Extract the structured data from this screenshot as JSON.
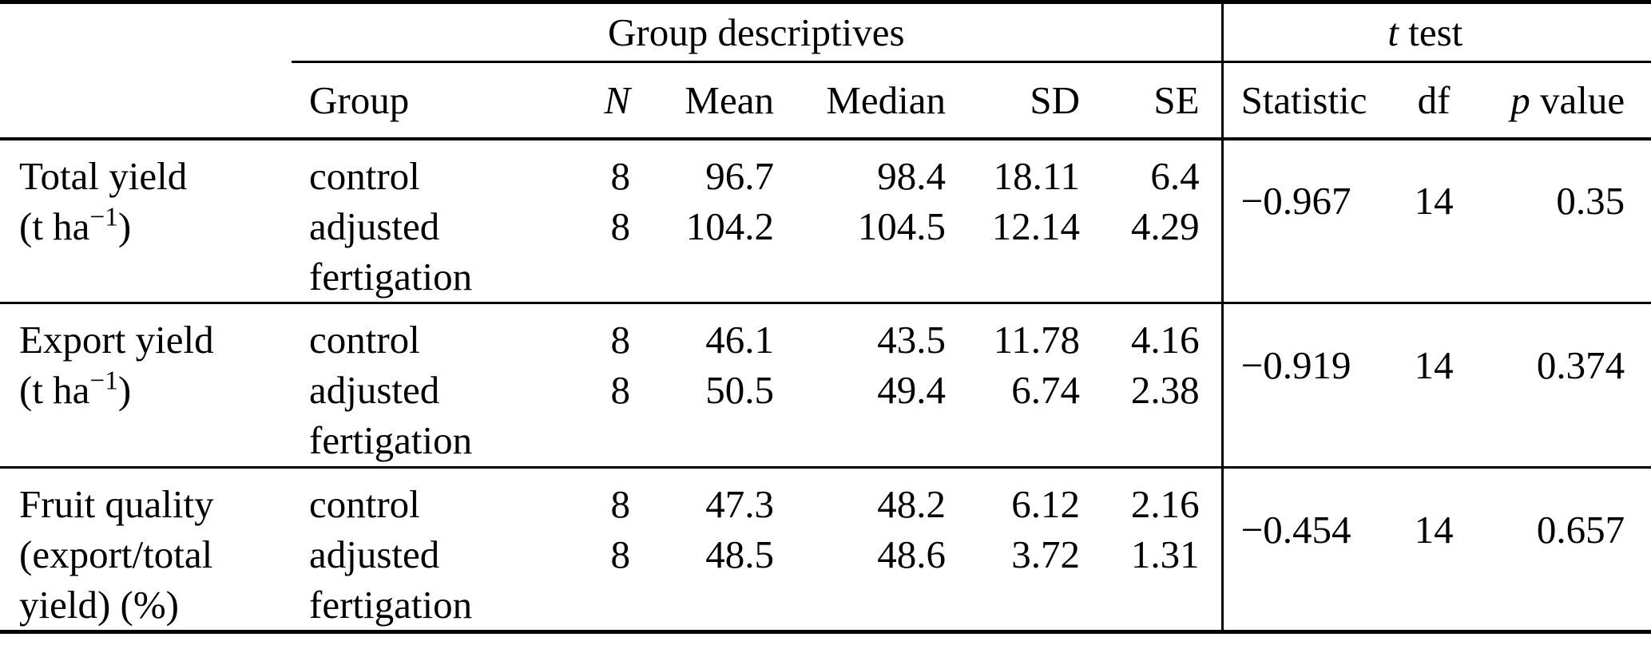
{
  "colors": {
    "text": "#000000",
    "background": "#ffffff",
    "rule": "#000000"
  },
  "table": {
    "spanner_descriptives": "Group descriptives",
    "spanner_ttest": {
      "italic": "t",
      "rest": " test"
    },
    "headers": {
      "group": "Group",
      "n": "N",
      "mean": "Mean",
      "median": "Median",
      "sd": "SD",
      "se": "SE",
      "statistic": "Statistic",
      "df": "df",
      "p": {
        "italic": "p",
        "rest": " value"
      }
    },
    "blocks": [
      {
        "variable": {
          "line1": "Total yield",
          "line2_prefix": "(t ha",
          "line2_sup": "−1",
          "line2_suffix": ")",
          "line3": ""
        },
        "rows": [
          {
            "group": "control",
            "n": "8",
            "mean": "96.7",
            "median": "98.4",
            "sd": "18.11",
            "se": "6.4"
          },
          {
            "group": "adjusted fertigation",
            "n": "8",
            "mean": "104.2",
            "median": "104.5",
            "sd": "12.14",
            "se": "4.29"
          }
        ],
        "ttest": {
          "statistic": "−0.967",
          "df": "14",
          "p": "0.35"
        }
      },
      {
        "variable": {
          "line1": "Export yield",
          "line2_prefix": "(t ha",
          "line2_sup": "−1",
          "line2_suffix": ")",
          "line3": ""
        },
        "rows": [
          {
            "group": "control",
            "n": "8",
            "mean": "46.1",
            "median": "43.5",
            "sd": "11.78",
            "se": "4.16"
          },
          {
            "group": "adjusted fertigation",
            "n": "8",
            "mean": "50.5",
            "median": "49.4",
            "sd": "6.74",
            "se": "2.38"
          }
        ],
        "ttest": {
          "statistic": "−0.919",
          "df": "14",
          "p": "0.374"
        }
      },
      {
        "variable": {
          "line1": "Fruit quality",
          "line2_prefix": "(export/total",
          "line2_sup": "",
          "line2_suffix": "",
          "line3": "yield) (%)"
        },
        "rows": [
          {
            "group": "control",
            "n": "8",
            "mean": "47.3",
            "median": "48.2",
            "sd": "6.12",
            "se": "2.16"
          },
          {
            "group": "adjusted fertigation",
            "n": "8",
            "mean": "48.5",
            "median": "48.6",
            "sd": "3.72",
            "se": "1.31"
          }
        ],
        "ttest": {
          "statistic": "−0.454",
          "df": "14",
          "p": "0.657"
        }
      }
    ]
  }
}
